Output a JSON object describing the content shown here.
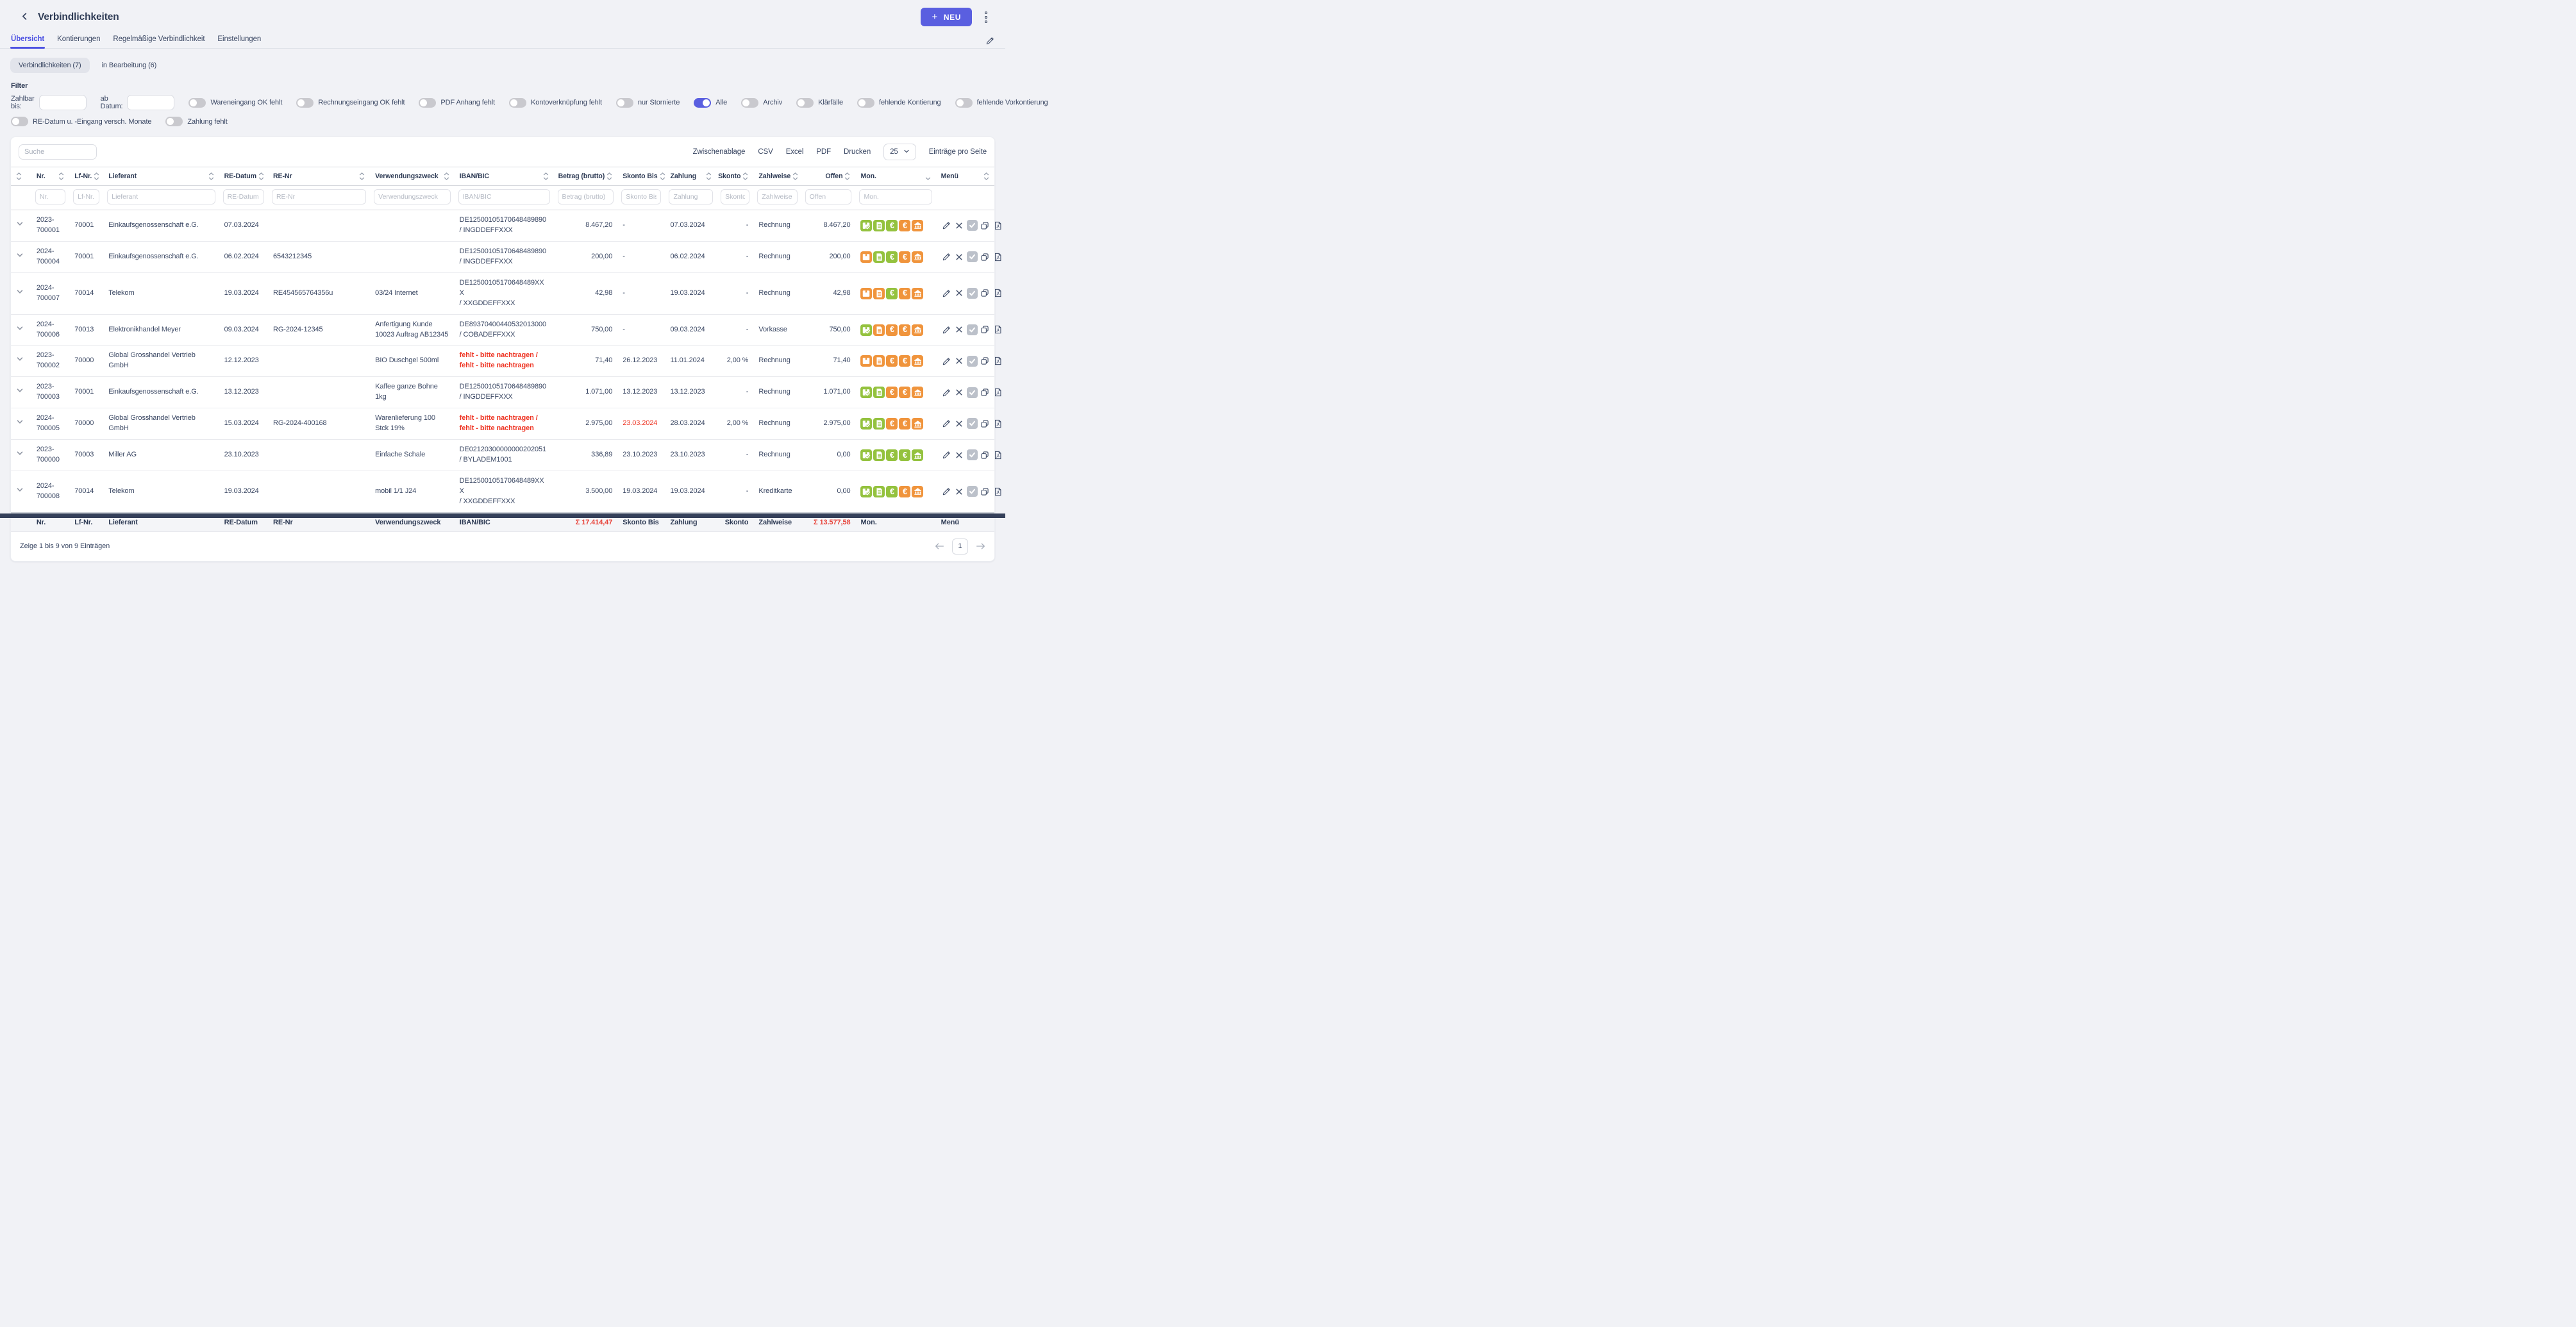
{
  "colors": {
    "accent": "#5a5fe0",
    "green": "#94c23e",
    "orange": "#f0943c",
    "red": "#ee3524"
  },
  "header": {
    "title": "Verbindlichkeiten",
    "plus": "+",
    "new_label": "NEU"
  },
  "tabs": [
    {
      "label": "Übersicht",
      "active": true
    },
    {
      "label": "Kontierungen",
      "active": false
    },
    {
      "label": "Regelmäßige Verbindlichkeit",
      "active": false
    },
    {
      "label": "Einstellungen",
      "active": false
    }
  ],
  "view_pills": [
    {
      "label": "Verbindlichkeiten (7)",
      "active": true
    },
    {
      "label": "in Bearbeitung (6)",
      "active": false
    }
  ],
  "filter": {
    "heading": "Filter",
    "date_fields": [
      {
        "label": "Zahlbar bis:"
      },
      {
        "label": "ab Datum:"
      }
    ],
    "toggles_row1": [
      {
        "label": "Wareneingang OK fehlt",
        "on": false
      },
      {
        "label": "Rechnungseingang OK fehlt",
        "on": false
      },
      {
        "label": "PDF Anhang fehlt",
        "on": false
      },
      {
        "label": "Kontoverknüpfung fehlt",
        "on": false
      },
      {
        "label": "nur Stornierte",
        "on": false
      },
      {
        "label": "Alle",
        "on": true
      },
      {
        "label": "Archiv",
        "on": false
      },
      {
        "label": "Klärfälle",
        "on": false
      },
      {
        "label": "fehlende Kontierung",
        "on": false
      },
      {
        "label": "fehlende Vorkontierung",
        "on": false
      }
    ],
    "toggles_row2": [
      {
        "label": "RE-Datum u. -Eingang versch. Monate",
        "on": false
      },
      {
        "label": "Zahlung fehlt",
        "on": false
      }
    ]
  },
  "toolbar": {
    "search_placeholder": "Suche",
    "export_buttons": [
      "Zwischenablage",
      "CSV",
      "Excel",
      "PDF",
      "Drucken"
    ],
    "page_size": "25",
    "page_size_suffix": "Einträge pro Seite"
  },
  "table": {
    "columns": [
      {
        "key": "expander",
        "label": "",
        "placeholder": null,
        "sort": "both"
      },
      {
        "key": "nr",
        "label": "Nr.",
        "placeholder": "Nr.",
        "sort": "both"
      },
      {
        "key": "lf",
        "label": "Lf-Nr.",
        "placeholder": "Lf-Nr.",
        "sort": "both"
      },
      {
        "key": "lieferant",
        "label": "Lieferant",
        "placeholder": "Lieferant",
        "sort": "both"
      },
      {
        "key": "re_datum",
        "label": "RE-Datum",
        "placeholder": "RE-Datum",
        "sort": "both"
      },
      {
        "key": "re_nr",
        "label": "RE-Nr",
        "placeholder": "RE-Nr",
        "sort": "both"
      },
      {
        "key": "zweck",
        "label": "Verwendungszweck",
        "placeholder": "Verwendungszweck",
        "sort": "both"
      },
      {
        "key": "iban",
        "label": "IBAN/BIC",
        "placeholder": "IBAN/BIC",
        "sort": "both"
      },
      {
        "key": "betrag",
        "label": "Betrag (brutto)",
        "placeholder": "Betrag (brutto)",
        "sort": "both",
        "align": "right"
      },
      {
        "key": "skonto_bis",
        "label": "Skonto Bis",
        "placeholder": "Skonto Bis",
        "sort": "both"
      },
      {
        "key": "zahlung",
        "label": "Zahlung",
        "placeholder": "Zahlung",
        "sort": "both"
      },
      {
        "key": "skonto",
        "label": "Skonto",
        "placeholder": "Skonto",
        "sort": "both",
        "align": "right"
      },
      {
        "key": "zahlweise",
        "label": "Zahlweise",
        "placeholder": "Zahlweise",
        "sort": "both"
      },
      {
        "key": "offen",
        "label": "Offen",
        "placeholder": "Offen",
        "sort": "both",
        "align": "right"
      },
      {
        "key": "mon",
        "label": "Mon.",
        "placeholder": "Mon.",
        "sort": "down"
      },
      {
        "key": "menu",
        "label": "Menü",
        "placeholder": null,
        "sort": "both"
      }
    ],
    "mon_icons": [
      "goods-receipt-icon",
      "invoice-icon",
      "euro-payment-icon",
      "euro-skonto-icon",
      "bank-icon"
    ],
    "menu_actions": [
      "edit",
      "cancel",
      "approve",
      "copy",
      "pdf"
    ],
    "missing_line1": "fehlt - bitte nachtragen /",
    "missing_line2": "fehlt - bitte nachtragen",
    "rows": [
      {
        "nr": "2023-700001",
        "lf": "70001",
        "lieferant": "Einkaufsgenossenschaft e.G.",
        "re_datum": "07.03.2024",
        "re_nr": "",
        "zweck": "",
        "iban": "DE12500105170648489890",
        "bic": "INGDDEFFXXX",
        "iban_missing": false,
        "betrag": "8.467,20",
        "skonto_bis": "-",
        "skonto_bis_red": false,
        "zahlung": "07.03.2024",
        "skonto": "-",
        "zahlweise": "Rechnung",
        "offen": "8.467,20",
        "mon": [
          "green",
          "green",
          "green",
          "orange",
          "orange"
        ]
      },
      {
        "nr": "2024-700004",
        "lf": "70001",
        "lieferant": "Einkaufsgenossenschaft e.G.",
        "re_datum": "06.02.2024",
        "re_nr": "6543212345",
        "zweck": "",
        "iban": "DE12500105170648489890",
        "bic": "INGDDEFFXXX",
        "iban_missing": false,
        "betrag": "200,00",
        "skonto_bis": "-",
        "skonto_bis_red": false,
        "zahlung": "06.02.2024",
        "skonto": "-",
        "zahlweise": "Rechnung",
        "offen": "200,00",
        "mon": [
          "orange",
          "green",
          "green",
          "orange",
          "orange"
        ]
      },
      {
        "nr": "2024-700007",
        "lf": "70014",
        "lieferant": "Telekom",
        "re_datum": "19.03.2024",
        "re_nr": "RE454565764356u",
        "zweck": "03/24 Internet",
        "iban": "DE12500105170648489XXX",
        "bic": "XXGDDEFFXXX",
        "iban_missing": false,
        "betrag": "42,98",
        "skonto_bis": "-",
        "skonto_bis_red": false,
        "zahlung": "19.03.2024",
        "skonto": "-",
        "zahlweise": "Rechnung",
        "offen": "42,98",
        "mon": [
          "orange",
          "orange",
          "green",
          "orange",
          "orange"
        ]
      },
      {
        "nr": "2024-700006",
        "lf": "70013",
        "lieferant": "Elektronikhandel Meyer",
        "re_datum": "09.03.2024",
        "re_nr": "RG-2024-12345",
        "zweck": "Anfertigung Kunde 10023 Auftrag AB12345",
        "iban": "DE89370400440532013000",
        "bic": "COBADEFFXXX",
        "iban_missing": false,
        "betrag": "750,00",
        "skonto_bis": "-",
        "skonto_bis_red": false,
        "zahlung": "09.03.2024",
        "skonto": "-",
        "zahlweise": "Vorkasse",
        "offen": "750,00",
        "mon": [
          "green",
          "orange",
          "orange",
          "orange",
          "orange"
        ]
      },
      {
        "nr": "2023-700002",
        "lf": "70000",
        "lieferant": "Global Grosshandel Vertrieb GmbH",
        "re_datum": "12.12.2023",
        "re_nr": "",
        "zweck": "BIO Duschgel 500ml",
        "iban": "",
        "bic": "",
        "iban_missing": true,
        "betrag": "71,40",
        "skonto_bis": "26.12.2023",
        "skonto_bis_red": false,
        "zahlung": "11.01.2024",
        "skonto": "2,00 %",
        "zahlweise": "Rechnung",
        "offen": "71,40",
        "mon": [
          "orange",
          "orange",
          "orange",
          "orange",
          "orange"
        ]
      },
      {
        "nr": "2023-700003",
        "lf": "70001",
        "lieferant": "Einkaufsgenossenschaft e.G.",
        "re_datum": "13.12.2023",
        "re_nr": "",
        "zweck": "Kaffee ganze Bohne 1kg",
        "iban": "DE12500105170648489890",
        "bic": "INGDDEFFXXX",
        "iban_missing": false,
        "betrag": "1.071,00",
        "skonto_bis": "13.12.2023",
        "skonto_bis_red": false,
        "zahlung": "13.12.2023",
        "skonto": "-",
        "zahlweise": "Rechnung",
        "offen": "1.071,00",
        "mon": [
          "green",
          "green",
          "orange",
          "orange",
          "orange"
        ]
      },
      {
        "nr": "2024-700005",
        "lf": "70000",
        "lieferant": "Global Grosshandel Vertrieb GmbH",
        "re_datum": "15.03.2024",
        "re_nr": "RG-2024-400168",
        "zweck": "Warenlieferung 100 Stck 19%",
        "iban": "",
        "bic": "",
        "iban_missing": true,
        "betrag": "2.975,00",
        "skonto_bis": "23.03.2024",
        "skonto_bis_red": true,
        "zahlung": "28.03.2024",
        "skonto": "2,00 %",
        "zahlweise": "Rechnung",
        "offen": "2.975,00",
        "mon": [
          "green",
          "green",
          "orange",
          "orange",
          "orange"
        ]
      },
      {
        "nr": "2023-700000",
        "lf": "70003",
        "lieferant": "Miller AG",
        "re_datum": "23.10.2023",
        "re_nr": "",
        "zweck": "Einfache Schale",
        "iban": "DE02120300000000202051",
        "bic": "BYLADEM1001",
        "iban_missing": false,
        "betrag": "336,89",
        "skonto_bis": "23.10.2023",
        "skonto_bis_red": false,
        "zahlung": "23.10.2023",
        "skonto": "-",
        "zahlweise": "Rechnung",
        "offen": "0,00",
        "mon": [
          "green",
          "green",
          "green",
          "green",
          "green"
        ]
      },
      {
        "nr": "2024-700008",
        "lf": "70014",
        "lieferant": "Telekom",
        "re_datum": "19.03.2024",
        "re_nr": "",
        "zweck": "mobil 1/1 J24",
        "iban": "DE12500105170648489XXX",
        "bic": "XXGDDEFFXXX",
        "iban_missing": false,
        "betrag": "3.500,00",
        "skonto_bis": "19.03.2024",
        "skonto_bis_red": false,
        "zahlung": "19.03.2024",
        "skonto": "-",
        "zahlweise": "Kreditkarte",
        "offen": "0,00",
        "mon": [
          "green",
          "green",
          "green",
          "orange",
          "orange"
        ]
      }
    ],
    "footer": {
      "expander": "",
      "nr": "Nr.",
      "lf": "Lf-Nr.",
      "lieferant": "Lieferant",
      "re_datum": "RE-Datum",
      "re_nr": "RE-Nr",
      "zweck": "Verwendungszweck",
      "iban": "IBAN/BIC",
      "betrag": "Σ 17.414,47",
      "skonto_bis": "Skonto Bis",
      "zahlung": "Zahlung",
      "skonto": "Skonto",
      "zahlweise": "Zahlweise",
      "offen": "Σ 13.577,58",
      "mon": "Mon.",
      "menu": "Menü"
    }
  },
  "pagination": {
    "info": "Zeige 1 bis 9 von 9 Einträgen",
    "page": "1"
  }
}
